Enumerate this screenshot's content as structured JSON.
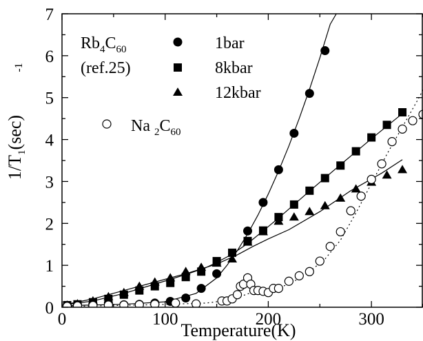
{
  "chart_data": {
    "type": "scatter",
    "xlabel": "Temperature(K)",
    "ylabel": {
      "base": "1/T",
      "sub": "1",
      "rest": "(sec)",
      "sup": "-1"
    },
    "xlim": [
      0,
      350
    ],
    "ylim": [
      0,
      7
    ],
    "xticks": [
      "0",
      "100",
      "200",
      "300"
    ],
    "yticks": [
      "0",
      "1",
      "2",
      "3",
      "4",
      "5",
      "6",
      "7"
    ],
    "grid": false,
    "legend_position": "top-left",
    "annotation": {
      "line1_base": "Rb",
      "line1_sub1": "4",
      "line1_mid": "C",
      "line1_sub2": "60",
      "line2": "(ref.25)"
    },
    "series": [
      {
        "name": "1bar",
        "marker": "filled-circle",
        "points": [
          [
            5,
            0.04
          ],
          [
            15,
            0.06
          ],
          [
            30,
            0.08
          ],
          [
            45,
            0.1
          ],
          [
            60,
            0.06
          ],
          [
            75,
            0.07
          ],
          [
            90,
            0.1
          ],
          [
            105,
            0.14
          ],
          [
            120,
            0.22
          ],
          [
            135,
            0.45
          ],
          [
            150,
            0.8
          ],
          [
            180,
            1.82
          ],
          [
            195,
            2.5
          ],
          [
            210,
            3.28
          ],
          [
            225,
            4.15
          ],
          [
            240,
            5.1
          ],
          [
            255,
            6.12
          ]
        ]
      },
      {
        "name": "8kbar",
        "marker": "filled-square",
        "points": [
          [
            5,
            0.05
          ],
          [
            15,
            0.07
          ],
          [
            30,
            0.12
          ],
          [
            45,
            0.2
          ],
          [
            60,
            0.3
          ],
          [
            75,
            0.4
          ],
          [
            90,
            0.5
          ],
          [
            105,
            0.58
          ],
          [
            120,
            0.72
          ],
          [
            135,
            0.85
          ],
          [
            150,
            1.1
          ],
          [
            165,
            1.3
          ],
          [
            180,
            1.58
          ],
          [
            195,
            1.83
          ],
          [
            210,
            2.15
          ],
          [
            225,
            2.45
          ],
          [
            240,
            2.78
          ],
          [
            255,
            3.08
          ],
          [
            270,
            3.38
          ],
          [
            285,
            3.72
          ],
          [
            300,
            4.05
          ],
          [
            315,
            4.35
          ],
          [
            330,
            4.65
          ]
        ]
      },
      {
        "name": "12kbar",
        "marker": "filled-triangle",
        "points": [
          [
            5,
            0.05
          ],
          [
            15,
            0.08
          ],
          [
            30,
            0.15
          ],
          [
            45,
            0.25
          ],
          [
            60,
            0.35
          ],
          [
            75,
            0.5
          ],
          [
            90,
            0.6
          ],
          [
            105,
            0.7
          ],
          [
            120,
            0.85
          ],
          [
            135,
            0.95
          ],
          [
            150,
            1.05
          ],
          [
            165,
            1.15
          ],
          [
            180,
            1.55
          ],
          [
            195,
            1.8
          ],
          [
            210,
            2.05
          ],
          [
            225,
            2.15
          ],
          [
            240,
            2.28
          ],
          [
            255,
            2.42
          ],
          [
            270,
            2.6
          ],
          [
            285,
            2.82
          ],
          [
            300,
            2.98
          ],
          [
            315,
            3.15
          ],
          [
            330,
            3.28
          ]
        ]
      },
      {
        "name": "Na2C60",
        "label": {
          "base": "Na ",
          "sub1": "2",
          "mid": "C",
          "sub2": "60"
        },
        "marker": "open-circle",
        "points": [
          [
            5,
            0.02
          ],
          [
            15,
            0.03
          ],
          [
            30,
            0.04
          ],
          [
            45,
            0.05
          ],
          [
            60,
            0.05
          ],
          [
            75,
            0.06
          ],
          [
            90,
            0.07
          ],
          [
            110,
            0.1
          ],
          [
            130,
            0.08
          ],
          [
            155,
            0.15
          ],
          [
            160,
            0.15
          ],
          [
            165,
            0.2
          ],
          [
            170,
            0.3
          ],
          [
            173,
            0.5
          ],
          [
            176,
            0.55
          ],
          [
            180,
            0.7
          ],
          [
            183,
            0.55
          ],
          [
            186,
            0.4
          ],
          [
            190,
            0.4
          ],
          [
            195,
            0.38
          ],
          [
            200,
            0.35
          ],
          [
            205,
            0.45
          ],
          [
            210,
            0.45
          ],
          [
            220,
            0.62
          ],
          [
            230,
            0.75
          ],
          [
            240,
            0.85
          ],
          [
            250,
            1.1
          ],
          [
            260,
            1.45
          ],
          [
            270,
            1.8
          ],
          [
            280,
            2.3
          ],
          [
            290,
            2.65
          ],
          [
            300,
            3.05
          ],
          [
            310,
            3.42
          ],
          [
            320,
            3.95
          ],
          [
            330,
            4.25
          ],
          [
            340,
            4.45
          ],
          [
            350,
            4.6
          ]
        ]
      }
    ],
    "fit_lines": {
      "1bar": [
        [
          5,
          0.04
        ],
        [
          60,
          0.07
        ],
        [
          100,
          0.13
        ],
        [
          130,
          0.33
        ],
        [
          150,
          0.7
        ],
        [
          160,
          1.0
        ],
        [
          170,
          1.35
        ],
        [
          180,
          1.75
        ],
        [
          190,
          2.2
        ],
        [
          200,
          2.7
        ],
        [
          210,
          3.25
        ],
        [
          220,
          3.85
        ],
        [
          230,
          4.5
        ],
        [
          240,
          5.2
        ],
        [
          250,
          5.95
        ],
        [
          260,
          6.75
        ],
        [
          266,
          7.0
        ]
      ],
      "8kbar": [
        [
          0,
          0.05
        ],
        [
          30,
          0.15
        ],
        [
          60,
          0.33
        ],
        [
          90,
          0.55
        ],
        [
          120,
          0.78
        ],
        [
          140,
          0.95
        ],
        [
          150,
          1.07
        ],
        [
          160,
          1.2
        ],
        [
          170,
          1.35
        ],
        [
          180,
          1.52
        ],
        [
          195,
          1.82
        ],
        [
          210,
          2.13
        ],
        [
          240,
          2.77
        ],
        [
          270,
          3.4
        ],
        [
          300,
          4.02
        ],
        [
          330,
          4.62
        ]
      ],
      "12kbar": [
        [
          0,
          0.05
        ],
        [
          30,
          0.2
        ],
        [
          60,
          0.4
        ],
        [
          90,
          0.6
        ],
        [
          120,
          0.8
        ],
        [
          150,
          1.03
        ],
        [
          170,
          1.25
        ],
        [
          185,
          1.45
        ],
        [
          200,
          1.63
        ],
        [
          220,
          1.85
        ],
        [
          250,
          2.28
        ],
        [
          280,
          2.78
        ],
        [
          310,
          3.2
        ],
        [
          330,
          3.52
        ]
      ],
      "Na2C60": [
        [
          5,
          0.02
        ],
        [
          90,
          0.06
        ],
        [
          140,
          0.1
        ],
        [
          165,
          0.18
        ],
        [
          180,
          0.32
        ],
        [
          195,
          0.38
        ],
        [
          210,
          0.45
        ],
        [
          225,
          0.62
        ],
        [
          240,
          0.85
        ],
        [
          255,
          1.15
        ],
        [
          270,
          1.6
        ],
        [
          285,
          2.25
        ],
        [
          300,
          2.95
        ],
        [
          315,
          3.65
        ],
        [
          330,
          4.3
        ],
        [
          345,
          4.95
        ],
        [
          352,
          5.28
        ]
      ]
    }
  }
}
